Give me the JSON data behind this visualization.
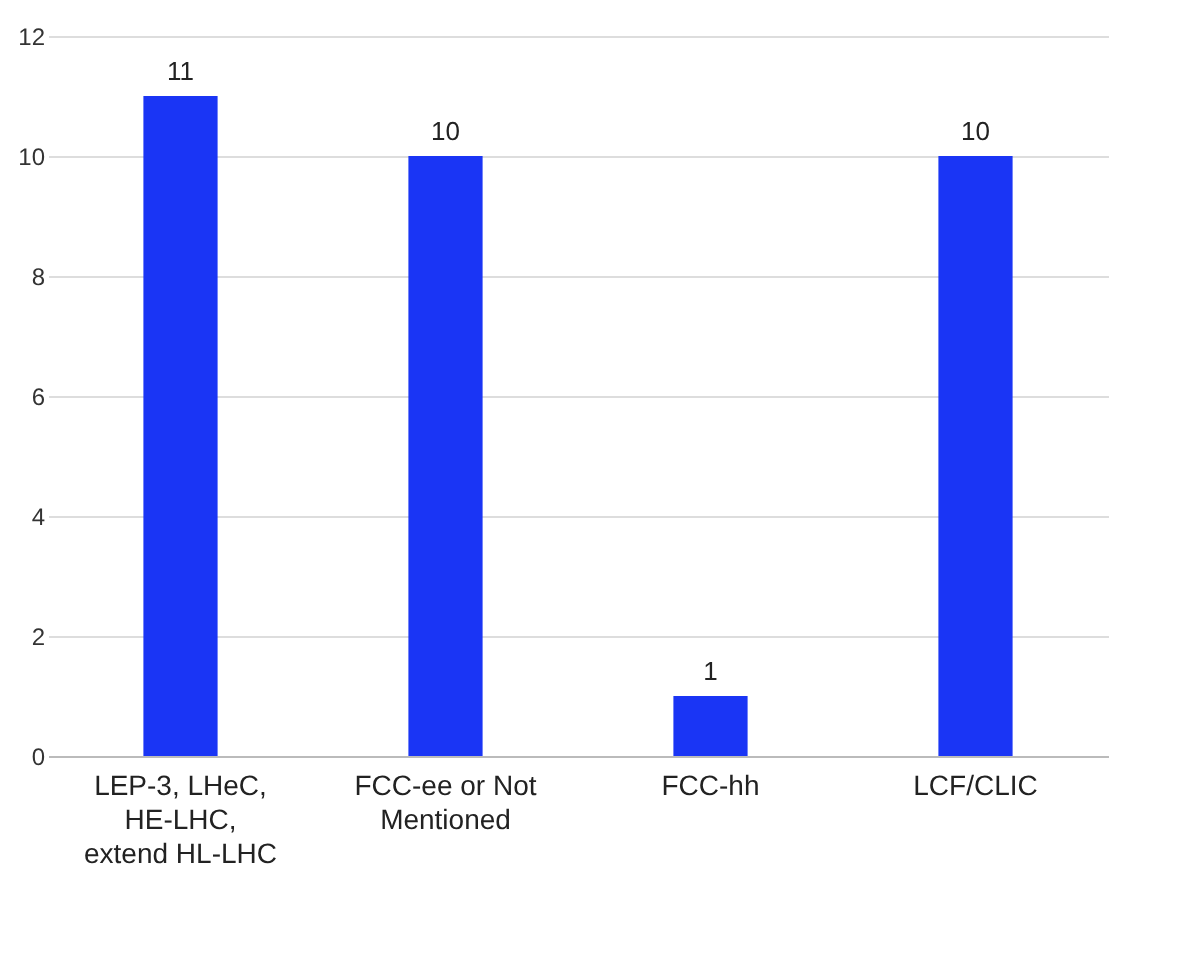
{
  "chart_data": {
    "type": "bar",
    "categories": [
      "LEP-3, LHeC, HE-LHC, extend HL-LHC",
      "FCC-ee or Not Mentioned",
      "FCC-hh",
      "LCF/CLIC"
    ],
    "values": [
      11,
      10,
      1,
      10
    ],
    "color": "#1a35f5",
    "ylim": [
      0,
      12
    ],
    "yticks": [
      0,
      2,
      4,
      6,
      8,
      10,
      12
    ],
    "grid": "y",
    "data_labels": true
  }
}
